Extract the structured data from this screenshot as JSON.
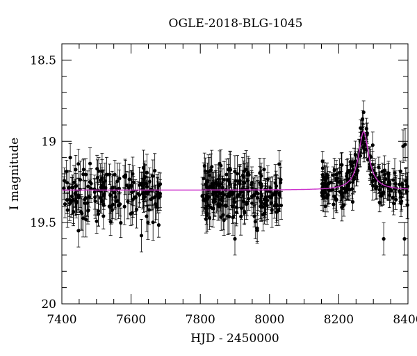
{
  "chart_data": {
    "type": "scatter",
    "title": "OGLE-2018-BLG-1045",
    "xlabel": "HJD - 2450000",
    "ylabel": "I magnitude",
    "xlim": [
      7400,
      8400
    ],
    "ylim": [
      20,
      18.4
    ],
    "y_inverted": true,
    "x_ticks": [
      7400,
      7600,
      7800,
      8000,
      8200,
      8400
    ],
    "y_ticks": [
      18.5,
      19,
      19.5,
      20
    ],
    "x_tick_labels": [
      "7400",
      "7600",
      "7800",
      "8000",
      "8200",
      "8400"
    ],
    "y_tick_labels": [
      "18.5",
      "19",
      "19.5",
      "20"
    ],
    "x_minor_step": 50,
    "y_minor_step": 0.1,
    "grid": false,
    "legend": "none",
    "colors": {
      "data": "#000000",
      "model": "#cc33cc"
    },
    "model": {
      "name": "",
      "baseline_mag": 19.3,
      "peak_time": 8272,
      "peak_mag": 18.94,
      "width_days": 18
    },
    "seasons": [
      {
        "start": 7405,
        "end": 7685,
        "n": 170,
        "mean_mag": 19.32,
        "scatter": 0.08,
        "err": 0.09
      },
      {
        "start": 7805,
        "end": 8035,
        "n": 200,
        "mean_mag": 19.32,
        "scatter": 0.08,
        "err": 0.09
      },
      {
        "start": 8150,
        "end": 8400,
        "n": 190,
        "mean_mag": 19.3,
        "scatter": 0.06,
        "err": 0.07
      }
    ],
    "extra_points": [
      {
        "x": 8330,
        "y": 19.6
      },
      {
        "x": 8390,
        "y": 19.6
      },
      {
        "x": 8386,
        "y": 19.03
      },
      {
        "x": 8392,
        "y": 19.02
      },
      {
        "x": 7630,
        "y": 19.58
      },
      {
        "x": 7900,
        "y": 19.6
      },
      {
        "x": 7448,
        "y": 19.55
      }
    ]
  }
}
